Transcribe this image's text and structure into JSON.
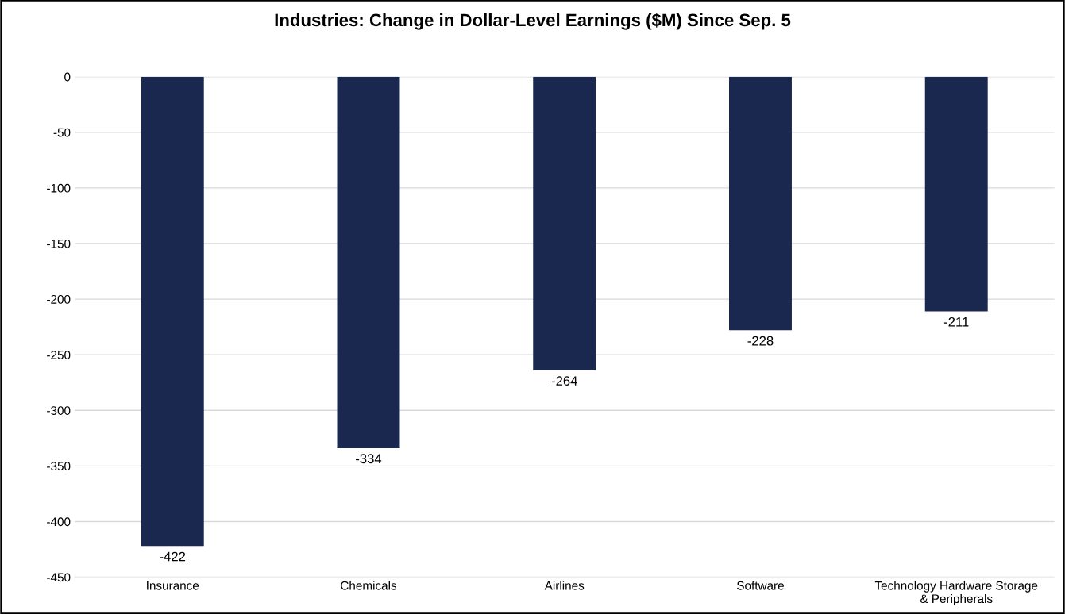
{
  "chart_data": {
    "type": "bar",
    "title": "Industries: Change in Dollar-Level Earnings ($M) Since Sep. 5",
    "categories": [
      "Insurance",
      "Chemicals",
      "Airlines",
      "Software",
      "Technology Hardware Storage\n& Peripherals"
    ],
    "values": [
      -422,
      -334,
      -264,
      -228,
      -211
    ],
    "color": "#1a2850",
    "ylim": [
      -450,
      0
    ],
    "yticks": [
      -450,
      -400,
      -350,
      -300,
      -250,
      -200,
      -150,
      -100,
      -50,
      0
    ],
    "grid": "y",
    "data_labels": true
  }
}
